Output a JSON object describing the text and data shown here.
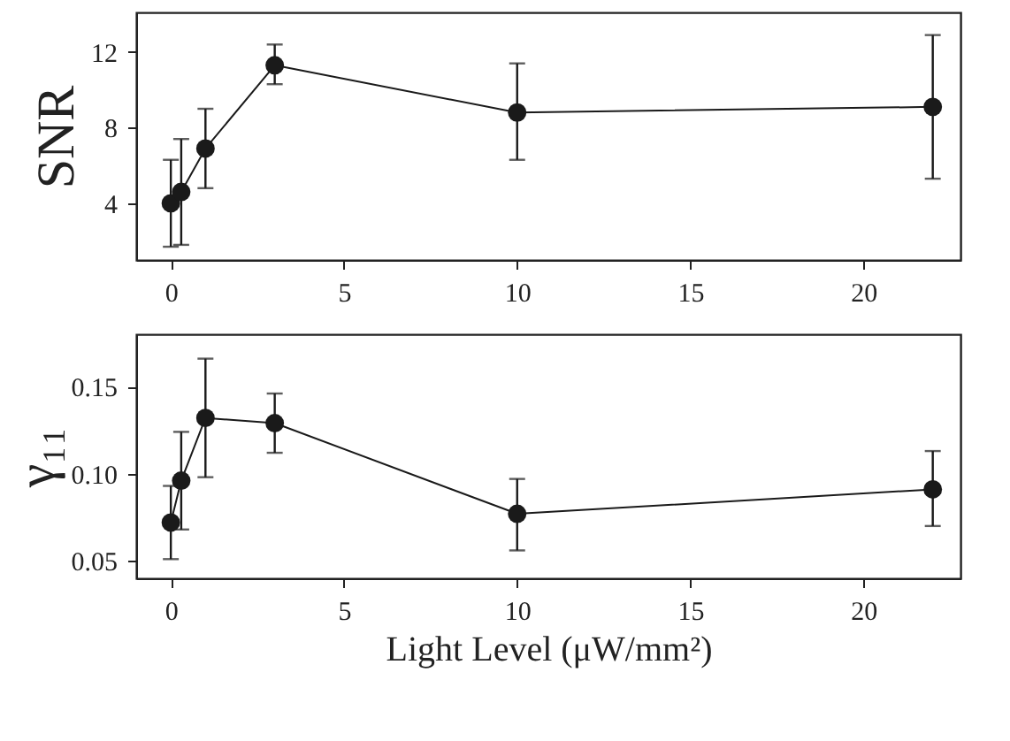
{
  "chart_data": [
    {
      "type": "line",
      "ylabel": "SNR",
      "x": [
        0,
        0.3,
        1,
        3,
        10,
        22
      ],
      "series": [
        {
          "color": "#1a1a1a",
          "values": [
            4.0,
            4.6,
            6.9,
            11.3,
            8.8,
            9.1
          ],
          "errors": [
            [
              1.7,
              6.3
            ],
            [
              1.8,
              7.4
            ],
            [
              4.8,
              9.0
            ],
            [
              10.3,
              12.4
            ],
            [
              6.3,
              11.4
            ],
            [
              5.3,
              12.9
            ]
          ]
        }
      ],
      "xlim": [
        -1,
        22.8
      ],
      "xticks": [
        0,
        5,
        10,
        15,
        20
      ],
      "ylim": [
        1,
        14.1
      ],
      "yticks": [
        4,
        8,
        12
      ],
      "grid": false,
      "marker": "circle",
      "line_style": "solid"
    },
    {
      "type": "line",
      "ylabel": "γ₁₁",
      "xlabel": "Light Level (μW/mm²)",
      "x": [
        0,
        0.3,
        1,
        3,
        10,
        22
      ],
      "series": [
        {
          "color": "#1a1a1a",
          "values": [
            0.072,
            0.096,
            0.132,
            0.129,
            0.077,
            0.091
          ],
          "errors": [
            [
              0.051,
              0.093
            ],
            [
              0.068,
              0.124
            ],
            [
              0.098,
              0.166
            ],
            [
              0.112,
              0.146
            ],
            [
              0.056,
              0.097
            ],
            [
              0.07,
              0.113
            ]
          ]
        }
      ],
      "xlim": [
        -1,
        22.8
      ],
      "xticks": [
        0,
        5,
        10,
        15,
        20
      ],
      "ylim": [
        0.04,
        0.18
      ],
      "yticks": [
        {
          "value": 0.05,
          "label": "0.05"
        },
        {
          "value": 0.1,
          "label": "0.10"
        },
        {
          "value": 0.15,
          "label": "0.15"
        }
      ],
      "grid": false,
      "marker": "circle",
      "line_style": "solid"
    }
  ]
}
